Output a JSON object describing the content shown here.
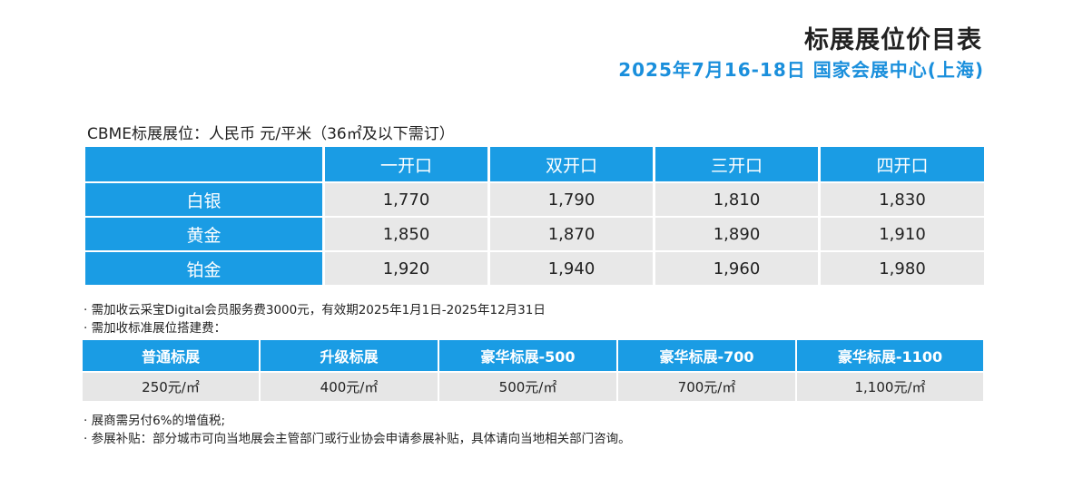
{
  "header": {
    "title": "标展展位价目表",
    "subtitle": "2025年7月16-18日   国家会展中心(上海)"
  },
  "caption": "CBME标展展位：人民币    元/平米（36㎡及以下需订）",
  "booth_table": {
    "headers": [
      "",
      "一开口",
      "双开口",
      "三开口",
      "四开口"
    ],
    "rows": [
      {
        "label": "白银",
        "values": [
          "1,770",
          "1,790",
          "1,810",
          "1,830"
        ]
      },
      {
        "label": "黄金",
        "values": [
          "1,850",
          "1,870",
          "1,890",
          "1,910"
        ]
      },
      {
        "label": "铂金",
        "values": [
          "1,920",
          "1,940",
          "1,960",
          "1,980"
        ]
      }
    ]
  },
  "notes_top": [
    "· 需加收云采宝Digital会员服务费3000元，有效期2025年1月1日-2025年12月31日",
    "· 需加收标准展位搭建费："
  ],
  "build_table": {
    "headers": [
      "普通标展",
      "升级标展",
      "豪华标展-500",
      "豪华标展-700",
      "豪华标展-1100"
    ],
    "values": [
      "250元/㎡",
      "400元/㎡",
      "500元/㎡",
      "700元/㎡",
      "1,100元/㎡"
    ]
  },
  "notes_bottom": [
    "· 展商需另付6%的增值税;",
    "· 参展补贴：部分城市可向当地展会主管部门或行业协会申请参展补贴，具体请向当地相关部门咨询。"
  ],
  "colors": {
    "accent": "#1a9ce4",
    "cell_bg": "#e8e8e8",
    "subtitle": "#1a8fdc"
  }
}
